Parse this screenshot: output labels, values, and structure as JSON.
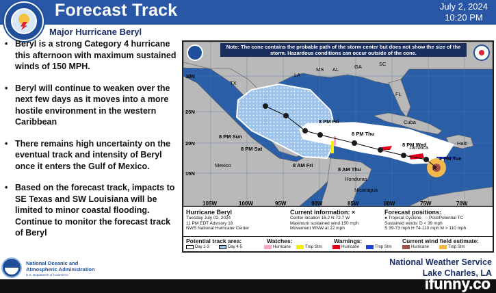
{
  "header": {
    "title": "Forecast Track",
    "date": "July 2, 2024",
    "time": "10:20 PM",
    "subtitle": "Major Hurricane Beryl",
    "accent": "#2a56a6"
  },
  "bullets": [
    "Beryl is a strong Category 4 hurricane this afternoon with maximum sustained winds of 150 MPH.",
    "Beryl will continue to  weaken over the next few days as it moves into a more hostile environment in the western Caribbean",
    "There remains high uncertainty on the eventual track and intensity of Beryl once it enters the Gulf of Mexico.",
    "Based on the forecast track, impacts to SE Texas and SW Louisiana will be limited to minor coastal flooding. Continue to monitor the forecast track of Beryl"
  ],
  "map": {
    "note": "Note: The cone contains the probable path of the storm center but does not show the size of the storm. Hazardous conditions can occur outside of the cone.",
    "latitudes": [
      "30N",
      "25N",
      "20N",
      "15N"
    ],
    "longitudes": [
      "105W",
      "100W",
      "95W",
      "90W",
      "85W",
      "80W",
      "75W",
      "70W"
    ],
    "points": [
      "8 PM Fri",
      "8 PM Thu",
      "8 PM Wed",
      "2 PM Tue",
      "8 PM Sun",
      "8 PM Sat",
      "8 AM Fri",
      "8 AM Thu"
    ],
    "places": [
      "TX",
      "LA",
      "MS",
      "AL",
      "GA",
      "FL",
      "SC",
      "Mexico",
      "Cuba",
      "Jamaica",
      "Haiti",
      "Honduras",
      "Nicaragua"
    ]
  },
  "info": {
    "storm": {
      "heading": "Hurricane Beryl",
      "lines": [
        "Tuesday July 02, 2024",
        "11 PM EDT Advisory 18",
        "NWS National Hurricane Center"
      ]
    },
    "current": {
      "heading": "Current information:",
      "marker": "×",
      "lines": [
        "Center location 16.2 N 72.7 W",
        "Maximum sustained wind 150 mph",
        "Movement WNW at 22 mph"
      ]
    },
    "forecast": {
      "heading": "Forecast positions:",
      "legend": [
        "Tropical Cyclone",
        "Post/Potential TC"
      ],
      "lines": [
        "Sustained winds:      D < 39 mph",
        "S 39-73 mph  H 74-110 mph  M > 110 mph"
      ]
    }
  },
  "legend": {
    "track_heading": "Potential track area:",
    "track_items": [
      "Day 1-3",
      "Day 4-5"
    ],
    "watches_heading": "Watches:",
    "watches": [
      {
        "label": "Hurricane",
        "color": "#f4a6c6"
      },
      {
        "label": "Trop Stm",
        "color": "#f5f000"
      }
    ],
    "warnings_heading": "Warnings:",
    "warnings": [
      {
        "label": "Hurricane",
        "color": "#e0001b"
      },
      {
        "label": "Trop Stm",
        "color": "#1e3fd6"
      }
    ],
    "wind_heading": "Current wind field estimate:",
    "wind": [
      {
        "label": "Hurricane",
        "color": "#a0504a"
      },
      {
        "label": "Trop Stm",
        "color": "#f2b84c"
      }
    ]
  },
  "footer": {
    "org_line1": "National Oceanic and",
    "org_line2": "Atmospheric Administration",
    "dept": "U.S. Department of Commerce",
    "nws_line1": "National Weather Service",
    "nws_line2": "Lake Charles, LA",
    "watermark": "ifunny.co"
  }
}
